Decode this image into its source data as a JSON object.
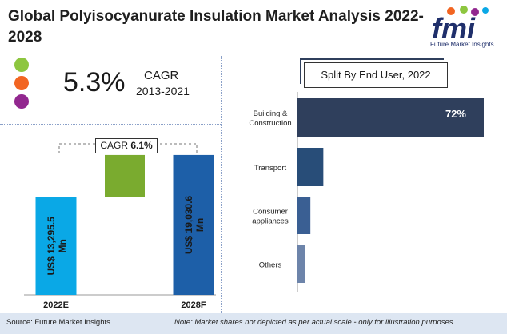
{
  "header": {
    "title": "Global Polyisocyanurate Insulation Market Analysis 2022-2028",
    "logo_word": "fmi",
    "logo_tagline": "Future Market Insights"
  },
  "kpi": {
    "value": "5.3%",
    "label": "CAGR",
    "period": "2013-2021",
    "dot_colors": [
      "#8dc63f",
      "#f26522",
      "#92278f"
    ]
  },
  "chart_data": [
    {
      "type": "bar",
      "categories": [
        "2022E",
        "2028F"
      ],
      "values": [
        13295.5,
        19030.6
      ],
      "value_labels": [
        "US$ 13,295.5 Mn",
        "US$ 19,030.6 Mn"
      ],
      "cagr_label": "CAGR",
      "cagr_value": "6.1%",
      "colors": [
        "#0aa8e6",
        "#1d5fa8"
      ],
      "increment_color": "#7aab2f"
    },
    {
      "type": "bar",
      "orientation": "horizontal",
      "title": "Split By End User, 2022",
      "categories": [
        "Building & Construction",
        "Transport",
        "Consumer appliances",
        "Others"
      ],
      "category_lines": [
        [
          "Building &",
          "Construction"
        ],
        [
          "Transport"
        ],
        [
          "Consumer",
          "appliances"
        ],
        [
          "Others"
        ]
      ],
      "values": [
        72,
        10,
        5,
        3
      ],
      "data_labels": [
        "72%",
        "",
        "",
        ""
      ],
      "colors": [
        "#2f3f5c",
        "#284d78",
        "#3a5f93",
        "#6d84aa"
      ]
    }
  ],
  "footer": {
    "source": "Source: Future Market Insights",
    "note": "Note: Market shares not depicted as per actual scale - only for illustration purposes"
  }
}
